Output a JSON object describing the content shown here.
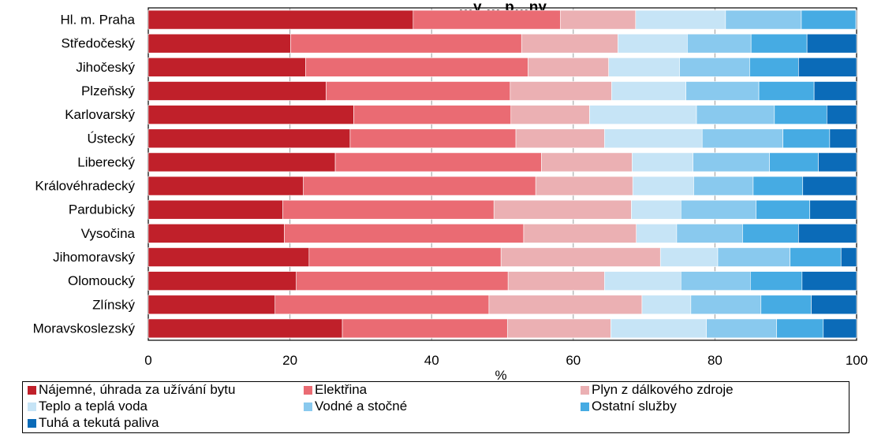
{
  "chart_data": {
    "type": "bar",
    "orientation": "horizontal",
    "stacked": true,
    "title": "…y … p…ny",
    "xlabel": "%",
    "ylabel": "",
    "xlim": [
      0,
      100
    ],
    "xticks": [
      "0",
      "20",
      "40",
      "60",
      "80",
      "100"
    ],
    "grid": true,
    "legend_position": "bottom",
    "categories": [
      "Hl. m. Praha",
      "Středočeský",
      "Jihočeský",
      "Plzeňský",
      "Karlovarský",
      "Ústecký",
      "Liberecký",
      "Královéhradecký",
      "Pardubický",
      "Vysočina",
      "Jihomoravský",
      "Olomoucký",
      "Zlínský",
      "Moravskoslezský"
    ],
    "series": [
      {
        "name": "Nájemné, úhrada za užívání bytu",
        "color": "#C0202A",
        "values": [
          37.4,
          20.1,
          22.2,
          25.1,
          29.0,
          28.5,
          26.4,
          21.9,
          19.0,
          19.2,
          22.7,
          20.9,
          17.9,
          27.4
        ]
      },
      {
        "name": "Elektřina",
        "color": "#EA6B73",
        "values": [
          20.8,
          32.6,
          31.4,
          26.0,
          22.2,
          23.4,
          29.1,
          32.8,
          29.8,
          33.8,
          27.1,
          29.9,
          30.2,
          23.3
        ]
      },
      {
        "name": "Plyn z dálkového zdroje",
        "color": "#EBB0B3",
        "values": [
          10.6,
          13.6,
          11.4,
          14.3,
          11.1,
          12.5,
          12.8,
          13.7,
          19.4,
          15.9,
          22.5,
          13.6,
          21.6,
          14.6
        ]
      },
      {
        "name": "Teplo a teplá voda",
        "color": "#C6E4F6",
        "values": [
          12.7,
          9.8,
          10.0,
          10.5,
          15.1,
          13.8,
          8.6,
          8.6,
          7.0,
          5.7,
          8.1,
          10.8,
          6.9,
          13.5
        ]
      },
      {
        "name": "Vodné a stočné",
        "color": "#89C9EE",
        "values": [
          10.7,
          9.0,
          9.9,
          10.3,
          11.0,
          11.4,
          10.8,
          8.4,
          10.6,
          9.3,
          10.2,
          9.8,
          9.9,
          9.9
        ]
      },
      {
        "name": "Ostatní služby",
        "color": "#46ABE3",
        "values": [
          7.7,
          7.9,
          6.9,
          7.8,
          7.4,
          6.6,
          6.9,
          7.0,
          7.6,
          7.9,
          7.2,
          7.3,
          7.1,
          6.6
        ]
      },
      {
        "name": "Tuhá a tekutá paliva",
        "color": "#0B6BB8",
        "values": [
          0.1,
          7.0,
          8.2,
          6.0,
          4.2,
          3.8,
          5.4,
          7.6,
          6.6,
          8.2,
          2.2,
          7.7,
          6.4,
          4.7
        ]
      }
    ]
  }
}
